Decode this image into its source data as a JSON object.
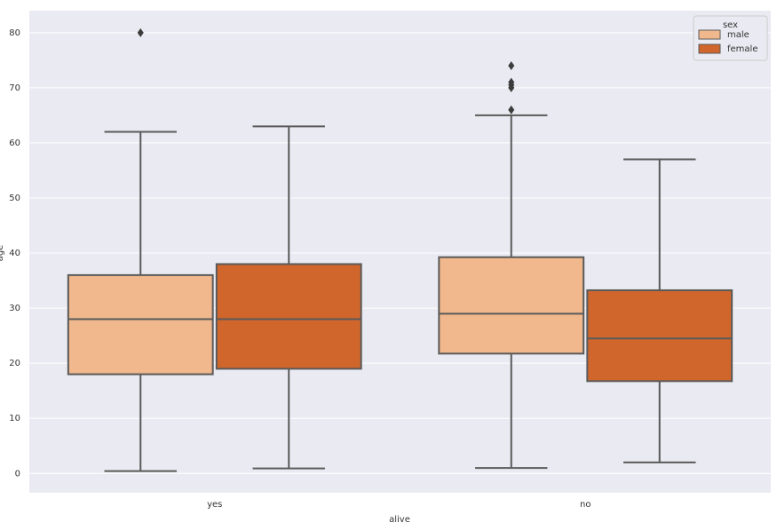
{
  "chart_data": {
    "type": "box",
    "x_label": "alive",
    "y_label": "age",
    "categories": [
      "yes",
      "no"
    ],
    "legend_title": "sex",
    "legend_position": "upper right",
    "series": [
      {
        "name": "male",
        "color": "#f0b88c",
        "boxes": [
          {
            "whislo": 0.42,
            "q1": 18,
            "med": 28,
            "q3": 36,
            "whishi": 62,
            "fliers": [
              80
            ]
          },
          {
            "whislo": 1,
            "q1": 21.75,
            "med": 29,
            "q3": 39.25,
            "whishi": 65,
            "fliers": [
              66,
              70,
              70.5,
              71,
              74
            ]
          }
        ]
      },
      {
        "name": "female",
        "color": "#d0662b",
        "boxes": [
          {
            "whislo": 0.92,
            "q1": 19,
            "med": 28,
            "q3": 38,
            "whishi": 63,
            "fliers": []
          },
          {
            "whislo": 2,
            "q1": 16.75,
            "med": 24.5,
            "q3": 33.25,
            "whishi": 57,
            "fliers": []
          }
        ]
      }
    ],
    "ylim": [
      -3.5,
      84
    ],
    "yticks": [
      0,
      10,
      20,
      30,
      40,
      50,
      60,
      70,
      80
    ],
    "grid": true,
    "background": "#eaeaf2",
    "edge_color": "#5a5a5a"
  }
}
